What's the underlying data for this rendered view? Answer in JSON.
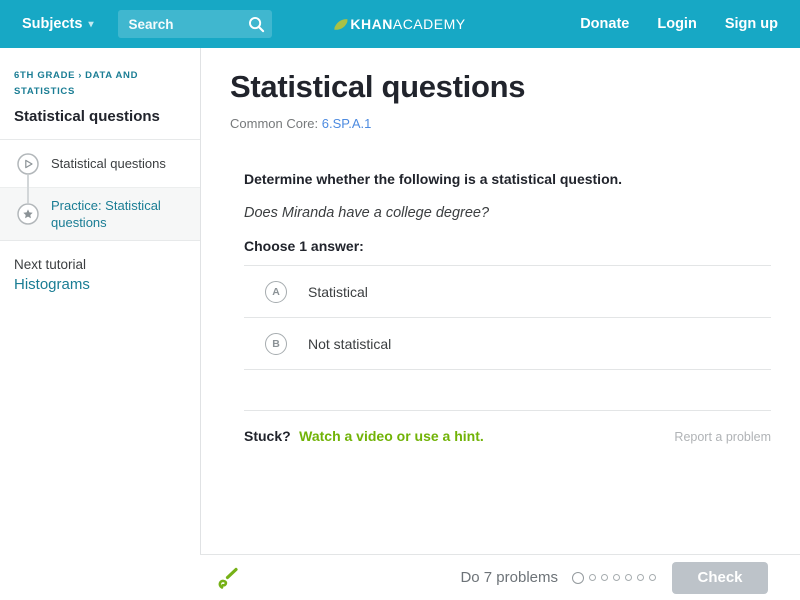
{
  "header": {
    "subjects_label": "Subjects",
    "search_placeholder": "Search",
    "logo": {
      "khan": "KHAN",
      "academy": "ACADEMY"
    },
    "links": {
      "donate": "Donate",
      "login": "Login",
      "signup": "Sign up"
    }
  },
  "sidebar": {
    "breadcrumb": {
      "part1": "6th grade",
      "separator": "›",
      "part2": "Data and statistics"
    },
    "title": "Statistical questions",
    "items": [
      {
        "label": "Statistical questions",
        "icon": "play-circle-icon",
        "selected": false
      },
      {
        "label": "Practice: Statistical questions",
        "icon": "star-circle-icon",
        "selected": true
      }
    ],
    "next_tutorial_label": "Next tutorial",
    "next_tutorial_link": "Histograms"
  },
  "main": {
    "title": "Statistical questions",
    "common_core_label": "Common Core:",
    "common_core_link": "6.SP.A.1",
    "question": {
      "prompt": "Determine whether the following is a statistical question.",
      "question_text": "Does Miranda have a college degree?",
      "choose_label": "Choose 1 answer:",
      "choices": [
        {
          "letter": "A",
          "label": "Statistical"
        },
        {
          "letter": "B",
          "label": "Not statistical"
        }
      ]
    },
    "stuck_label": "Stuck?",
    "stuck_link": "Watch a video or use a hint.",
    "report_link": "Report a problem"
  },
  "footer": {
    "problems_label": "Do 7 problems",
    "progress": {
      "total": 7,
      "current": 1
    },
    "check_label": "Check"
  },
  "icons": {
    "search": "magnifier-icon",
    "subjects_caret": "▾",
    "logo_leaf": "leaf-icon",
    "item_video": "play-circle-icon",
    "item_practice": "star-circle-icon",
    "energy_points": "sprout-icon"
  },
  "colors": {
    "header_teal": "#17a8c5",
    "teal_link": "#1a7d94",
    "blue_link": "#4d8be0",
    "green_link": "#71b307",
    "dark_text": "#21242c",
    "gray_text": "#6d7378",
    "divider": "#e3e5e6",
    "selected_bg": "#f6f7f7",
    "check_button_gray": "#bdc3c9",
    "logo_leaf_green": "#a9c145",
    "sprout_green": "#76b117"
  }
}
